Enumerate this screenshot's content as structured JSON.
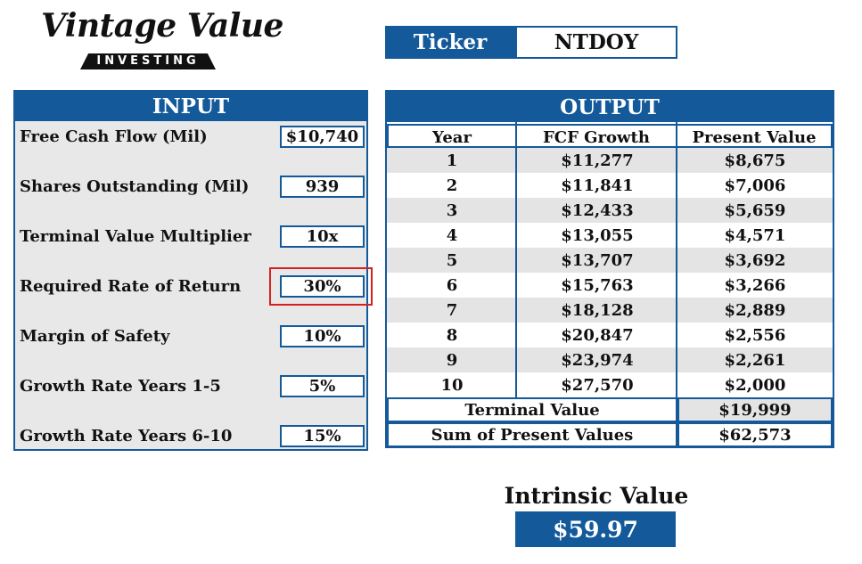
{
  "logo": {
    "script": "Vintage Value",
    "sub": "INVESTING"
  },
  "ticker": {
    "label": "Ticker",
    "value": "NTDOY"
  },
  "input": {
    "title": "INPUT",
    "rows": [
      {
        "label": "Free Cash Flow (Mil)",
        "value": "$10,740"
      },
      {
        "label": "Shares Outstanding (Mil)",
        "value": "939"
      },
      {
        "label": "Terminal Value Multiplier",
        "value": "10x"
      },
      {
        "label": "Required Rate of Return",
        "value": "30%"
      },
      {
        "label": "Margin of Safety",
        "value": "10%"
      },
      {
        "label": "Growth Rate Years 1-5",
        "value": "5%"
      },
      {
        "label": "Growth Rate Years 6-10",
        "value": "15%"
      }
    ]
  },
  "output": {
    "title": "OUTPUT",
    "columns": [
      "Year",
      "FCF Growth",
      "Present Value"
    ],
    "rows": [
      {
        "year": "1",
        "fcf": "$11,277",
        "pv": "$8,675"
      },
      {
        "year": "2",
        "fcf": "$11,841",
        "pv": "$7,006"
      },
      {
        "year": "3",
        "fcf": "$12,433",
        "pv": "$5,659"
      },
      {
        "year": "4",
        "fcf": "$13,055",
        "pv": "$4,571"
      },
      {
        "year": "5",
        "fcf": "$13,707",
        "pv": "$3,692"
      },
      {
        "year": "6",
        "fcf": "$15,763",
        "pv": "$3,266"
      },
      {
        "year": "7",
        "fcf": "$18,128",
        "pv": "$2,889"
      },
      {
        "year": "8",
        "fcf": "$20,847",
        "pv": "$2,556"
      },
      {
        "year": "9",
        "fcf": "$23,974",
        "pv": "$2,261"
      },
      {
        "year": "10",
        "fcf": "$27,570",
        "pv": "$2,000"
      }
    ],
    "terminal_label": "Terminal Value",
    "terminal_value": "$19,999",
    "sum_label": "Sum of Present Values",
    "sum_value": "$62,573"
  },
  "intrinsic": {
    "label": "Intrinsic Value",
    "value": "$59.97"
  },
  "colors": {
    "accent": "#145a9a",
    "highlight": "#d62020",
    "shade": "#e4e4e4"
  }
}
